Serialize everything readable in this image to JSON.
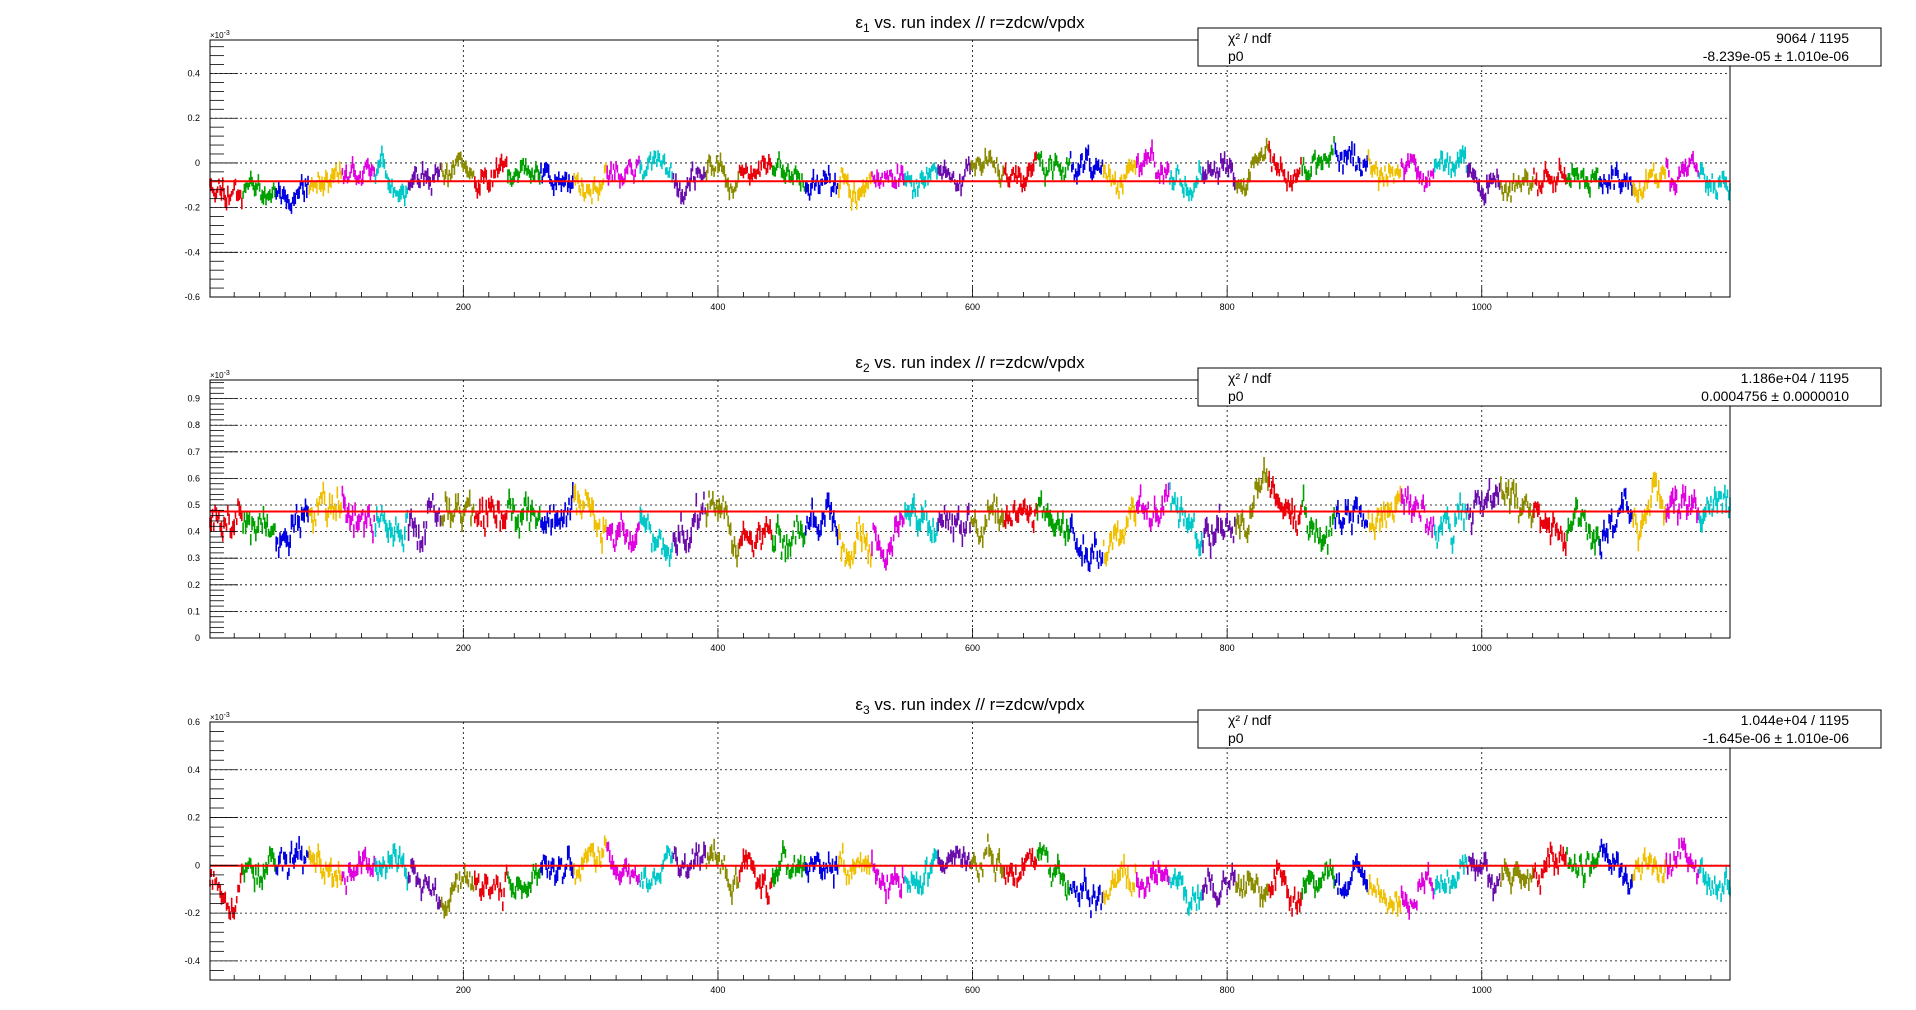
{
  "colors": [
    "#e8000b",
    "#00a000",
    "#0000e0",
    "#f0c000",
    "#e000e0",
    "#00c8c8",
    "#6a0dad",
    "#8b8b00"
  ],
  "fit_color": "#ff0000",
  "chart_data": [
    {
      "type": "scatter",
      "title_prefix": "ε",
      "title_sub": "1",
      "title_suffix": " vs. run index // r=zdcw/vpdx",
      "exponent_label": "×10",
      "exponent_power": "-3",
      "xlim": [
        1,
        1195
      ],
      "ylim": [
        -0.6,
        0.55
      ],
      "xticks": [
        200,
        400,
        600,
        800,
        1000
      ],
      "xtick_labels": [
        "200",
        "400",
        "600",
        "800",
        "1000"
      ],
      "yticks": [
        -0.6,
        -0.4,
        -0.2,
        0,
        0.2,
        0.4
      ],
      "ytick_labels": [
        "-0.6",
        "-0.4",
        "-0.2",
        "0",
        "0.2",
        "0.4"
      ],
      "grid": true,
      "fit_value": -0.082,
      "mean": -0.08,
      "spread": 0.075,
      "amp": 0.045,
      "seed": 11,
      "stats": {
        "row1_label": "χ² / ndf",
        "row1_value": "9064 / 1195",
        "row2_label": "p0",
        "row2_value": "-8.239e-05 ± 1.010e-06"
      },
      "legend_position": "top-right"
    },
    {
      "type": "scatter",
      "title_prefix": "ε",
      "title_sub": "2",
      "title_suffix": " vs. run index // r=zdcw/vpdx",
      "exponent_label": "×10",
      "exponent_power": "-3",
      "xlim": [
        1,
        1195
      ],
      "ylim": [
        0,
        0.97
      ],
      "xticks": [
        200,
        400,
        600,
        800,
        1000
      ],
      "xtick_labels": [
        "200",
        "400",
        "600",
        "800",
        "1000"
      ],
      "yticks": [
        0,
        0.1,
        0.2,
        0.3,
        0.4,
        0.5,
        0.6,
        0.7,
        0.8,
        0.9
      ],
      "ytick_labels": [
        "0",
        "0.1",
        "0.2",
        "0.3",
        "0.4",
        "0.5",
        "0.6",
        "0.7",
        "0.8",
        "0.9"
      ],
      "grid": true,
      "fit_value": 0.4756,
      "mean": 0.48,
      "spread": 0.09,
      "amp": 0.06,
      "seed": 27,
      "stats": {
        "row1_label": "χ² / ndf",
        "row1_value": "1.186e+04 / 1195",
        "row2_label": "p0",
        "row2_value": "0.0004756 ± 0.0000010"
      },
      "legend_position": "top-right"
    },
    {
      "type": "scatter",
      "title_prefix": "ε",
      "title_sub": "3",
      "title_suffix": " vs. run index // r=zdcw/vpdx",
      "exponent_label": "×10",
      "exponent_power": "-3",
      "xlim": [
        1,
        1195
      ],
      "ylim": [
        -0.48,
        0.6
      ],
      "xticks": [
        200,
        400,
        600,
        800,
        1000
      ],
      "xtick_labels": [
        "200",
        "400",
        "600",
        "800",
        "1000"
      ],
      "yticks": [
        -0.4,
        -0.2,
        0,
        0.2,
        0.4,
        0.6
      ],
      "ytick_labels": [
        "-0.4",
        "-0.2",
        "0",
        "0.2",
        "0.4",
        "0.6"
      ],
      "grid": true,
      "fit_value": -0.0016,
      "mean": 0.0,
      "spread": 0.085,
      "amp": 0.05,
      "seed": 53,
      "stats": {
        "row1_label": "χ² / ndf",
        "row1_value": "1.044e+04 / 1195",
        "row2_label": "p0",
        "row2_value": "-1.645e-06 ± 1.010e-06"
      },
      "legend_position": "top-right"
    }
  ]
}
